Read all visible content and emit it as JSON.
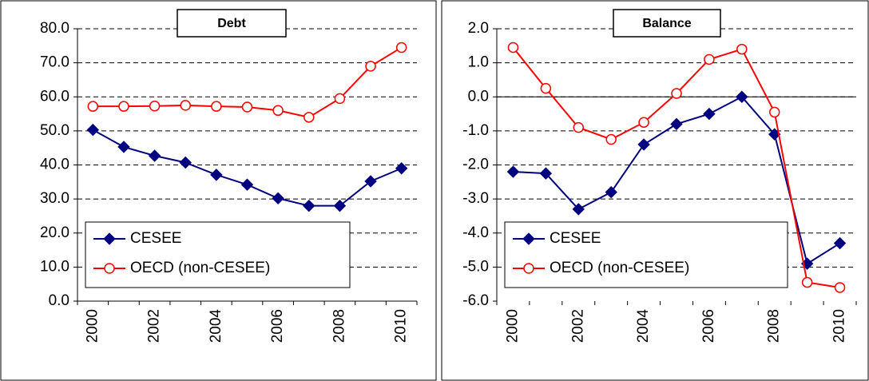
{
  "chart_data": [
    {
      "type": "line",
      "title": "Debt",
      "categories": [
        "2000",
        null,
        "2002",
        null,
        "2004",
        null,
        "2006",
        null,
        "2008",
        null,
        "2010"
      ],
      "series": [
        {
          "name": "CESEE",
          "color": "#000080",
          "marker": "diamond",
          "values": [
            50.3,
            45.3,
            42.7,
            40.7,
            37.1,
            34.2,
            30.2,
            28.0,
            28.0,
            35.2,
            39.0
          ]
        },
        {
          "name": "OECD (non-CESEE)",
          "color": "#ff0000",
          "marker": "circle",
          "values": [
            57.2,
            57.2,
            57.3,
            57.5,
            57.2,
            57.0,
            56.0,
            54.0,
            59.5,
            69.0,
            74.5
          ]
        }
      ],
      "ylim": [
        0,
        80
      ],
      "yticks": [
        {
          "value": 0,
          "label": "0.0"
        },
        {
          "value": 10,
          "label": "10.0"
        },
        {
          "value": 20,
          "label": "20.0"
        },
        {
          "value": 30,
          "label": "30.0"
        },
        {
          "value": 40,
          "label": "40.0"
        },
        {
          "value": 50,
          "label": "50.0"
        },
        {
          "value": 60,
          "label": "60.0"
        },
        {
          "value": 70,
          "label": "70.0"
        },
        {
          "value": 80,
          "label": "80.0"
        }
      ],
      "grid": true,
      "legend": "lower left"
    },
    {
      "type": "line",
      "title": "Balance",
      "categories": [
        "2000",
        null,
        "2002",
        null,
        "2004",
        null,
        "2006",
        null,
        "2008",
        null,
        "2010"
      ],
      "series": [
        {
          "name": "CESEE",
          "color": "#000080",
          "marker": "diamond",
          "values": [
            -2.2,
            -2.25,
            -3.3,
            -2.8,
            -1.4,
            -0.8,
            -0.5,
            0.0,
            -1.1,
            -4.9,
            -4.3
          ]
        },
        {
          "name": "OECD (non-CESEE)",
          "color": "#ff0000",
          "marker": "circle",
          "values": [
            1.45,
            0.25,
            -0.9,
            -1.25,
            -0.75,
            0.1,
            1.1,
            1.4,
            -0.45,
            -5.45,
            -5.6
          ]
        }
      ],
      "ylim": [
        -6,
        2
      ],
      "yticks": [
        {
          "value": -6,
          "label": "-6.0"
        },
        {
          "value": -5,
          "label": "-5.0"
        },
        {
          "value": -4,
          "label": "-4.0"
        },
        {
          "value": -3,
          "label": "-3.0"
        },
        {
          "value": -2,
          "label": "-2.0"
        },
        {
          "value": -1,
          "label": "-1.0"
        },
        {
          "value": 0,
          "label": "0.0"
        },
        {
          "value": 1,
          "label": "1.0"
        },
        {
          "value": 2,
          "label": "2.0"
        }
      ],
      "grid": true,
      "legend": "lower left"
    }
  ]
}
